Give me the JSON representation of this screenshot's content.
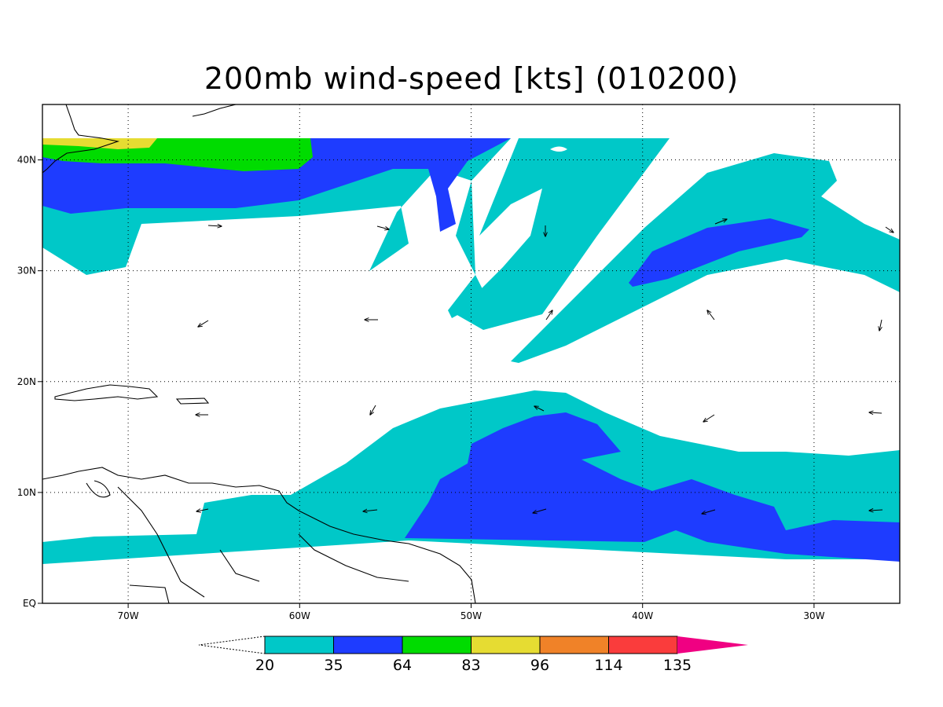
{
  "title": "200mb wind-speed [kts] (010200)",
  "map": {
    "lon_range": [
      -75,
      -25
    ],
    "lat_range": [
      0,
      45
    ],
    "lon_ticks": [
      {
        "value": -70,
        "label": "70W"
      },
      {
        "value": -60,
        "label": "60W"
      },
      {
        "value": -50,
        "label": "50W"
      },
      {
        "value": -40,
        "label": "40W"
      },
      {
        "value": -30,
        "label": "30W"
      }
    ],
    "lat_ticks": [
      {
        "value": 0,
        "label": "EQ"
      },
      {
        "value": 10,
        "label": "10N"
      },
      {
        "value": 20,
        "label": "20N"
      },
      {
        "value": 30,
        "label": "30N"
      },
      {
        "value": 40,
        "label": "40N"
      }
    ],
    "grid": "dotted"
  },
  "colorbar": {
    "levels": [
      "20",
      "35",
      "64",
      "83",
      "96",
      "114",
      "135"
    ],
    "colors": [
      "#00c8c8",
      "#1e3cff",
      "#00dc00",
      "#e6dc32",
      "#f08228",
      "#fa3c3c",
      "#f00082"
    ],
    "below_color": "#ffffff"
  },
  "shading_colors": {
    "20_35": "#00c8c8",
    "35_64": "#1e3cff",
    "64_83": "#00dc00",
    "83_96": "#e6dc32"
  },
  "wind_vectors": "arrows"
}
